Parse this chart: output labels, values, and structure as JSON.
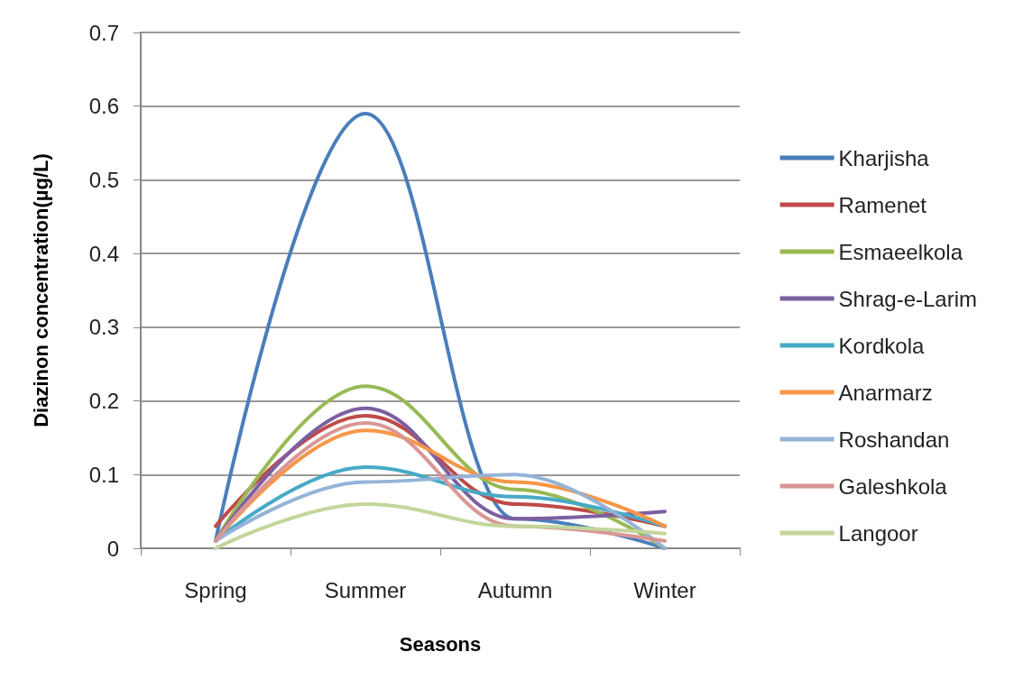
{
  "chart_data": {
    "type": "line",
    "xlabel": "Seasons",
    "ylabel": "Diazinon concentration(µg/L)",
    "categories": [
      "Spring",
      "Summer",
      "Autumn",
      "Winter"
    ],
    "ylim": [
      0,
      0.7
    ],
    "yticks": [
      0,
      0.1,
      0.2,
      0.3,
      0.4,
      0.5,
      0.6,
      0.7
    ],
    "grid": "y",
    "legend": "right",
    "marker": "none",
    "line_style": "solid",
    "series": [
      {
        "name": "Kharjisha",
        "color": "#4a7ebb",
        "values": [
          0.01,
          0.59,
          0.04,
          0
        ]
      },
      {
        "name": "Ramenet",
        "color": "#be4b48",
        "values": [
          0.03,
          0.18,
          0.06,
          0.03
        ]
      },
      {
        "name": "Esmaeelkola",
        "color": "#98b954",
        "values": [
          0.01,
          0.22,
          0.08,
          0
        ]
      },
      {
        "name": "Shrag-e-Larim",
        "color": "#7d5fa0",
        "values": [
          0.01,
          0.19,
          0.04,
          0.05
        ]
      },
      {
        "name": "Kordkola",
        "color": "#46aac5",
        "values": [
          0.01,
          0.11,
          0.07,
          0.03
        ]
      },
      {
        "name": "Anarmarz",
        "color": "#f79646",
        "values": [
          0.01,
          0.16,
          0.09,
          0.03
        ]
      },
      {
        "name": "Roshandan",
        "color": "#95b3d7",
        "values": [
          0.01,
          0.09,
          0.1,
          0
        ]
      },
      {
        "name": "Galeshkola",
        "color": "#d99694",
        "values": [
          0.01,
          0.17,
          0.03,
          0.01
        ]
      },
      {
        "name": "Langoor",
        "color": "#c3d69b",
        "values": [
          0,
          0.06,
          0.03,
          0.02
        ]
      }
    ]
  }
}
